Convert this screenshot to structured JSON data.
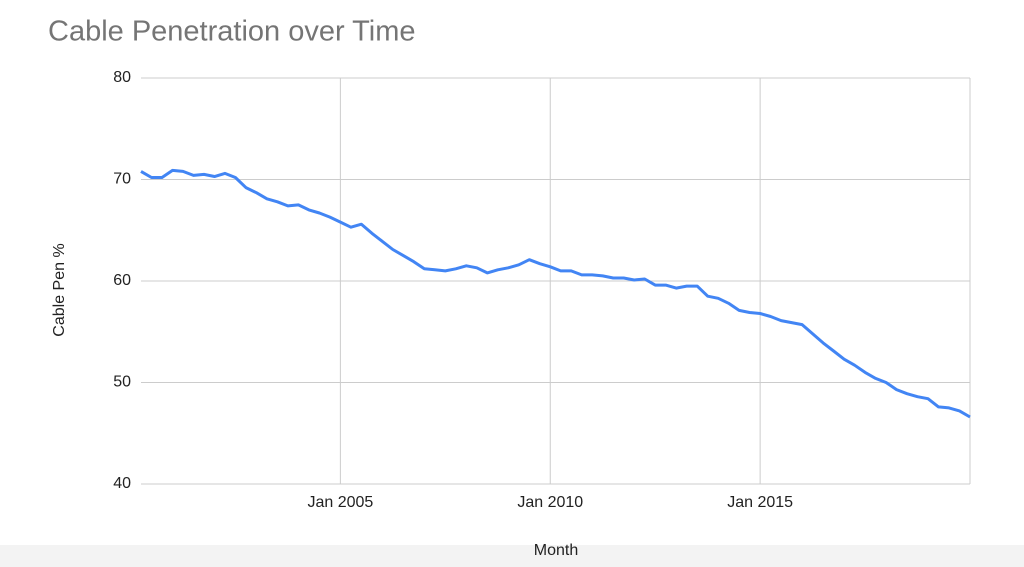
{
  "chart_data": {
    "type": "line",
    "title": "Cable Penetration over Time",
    "x_label": "Month",
    "y_label": "Cable Pen %",
    "x": [
      "2000-04",
      "2000-07",
      "2000-10",
      "2001-01",
      "2001-04",
      "2001-07",
      "2001-10",
      "2002-01",
      "2002-04",
      "2002-07",
      "2002-10",
      "2003-01",
      "2003-04",
      "2003-07",
      "2003-10",
      "2004-01",
      "2004-04",
      "2004-07",
      "2004-10",
      "2005-01",
      "2005-04",
      "2005-07",
      "2005-10",
      "2006-01",
      "2006-04",
      "2006-07",
      "2006-10",
      "2007-01",
      "2007-04",
      "2007-07",
      "2007-10",
      "2008-01",
      "2008-04",
      "2008-07",
      "2008-10",
      "2009-01",
      "2009-04",
      "2009-07",
      "2009-10",
      "2010-01",
      "2010-04",
      "2010-07",
      "2010-10",
      "2011-01",
      "2011-04",
      "2011-07",
      "2011-10",
      "2012-01",
      "2012-04",
      "2012-07",
      "2012-10",
      "2013-01",
      "2013-04",
      "2013-07",
      "2013-10",
      "2014-01",
      "2014-04",
      "2014-07",
      "2014-10",
      "2015-01",
      "2015-04",
      "2015-07",
      "2015-10",
      "2016-01",
      "2016-04",
      "2016-07",
      "2016-10",
      "2017-01",
      "2017-04",
      "2017-07",
      "2017-10",
      "2018-01",
      "2018-04",
      "2018-07",
      "2018-10",
      "2019-01",
      "2019-04",
      "2019-07",
      "2019-10",
      "2020-01"
    ],
    "series": [
      {
        "name": "Cable Pen %",
        "color": "#4285f4",
        "values": [
          70.8,
          70.2,
          70.2,
          70.9,
          70.8,
          70.4,
          70.5,
          70.3,
          70.6,
          70.2,
          69.2,
          68.7,
          68.1,
          67.8,
          67.4,
          67.5,
          67.0,
          66.7,
          66.3,
          65.8,
          65.3,
          65.6,
          64.7,
          63.9,
          63.1,
          62.5,
          61.9,
          61.2,
          61.1,
          61.0,
          61.2,
          61.5,
          61.3,
          60.8,
          61.1,
          61.3,
          61.6,
          62.1,
          61.7,
          61.4,
          61.0,
          61.0,
          60.6,
          60.6,
          60.5,
          60.3,
          60.3,
          60.1,
          60.2,
          59.6,
          59.6,
          59.3,
          59.5,
          59.5,
          58.5,
          58.3,
          57.8,
          57.1,
          56.9,
          56.8,
          56.5,
          56.1,
          55.9,
          55.7,
          54.8,
          53.9,
          53.1,
          52.3,
          51.7,
          51.0,
          50.4,
          50.0,
          49.3,
          48.9,
          48.6,
          48.4,
          47.6,
          47.5,
          47.2,
          46.6
        ]
      }
    ],
    "xlim": [
      "2000-04",
      "2020-01"
    ],
    "xticks": [
      {
        "value": "2005-01",
        "label": "Jan 2005"
      },
      {
        "value": "2010-01",
        "label": "Jan 2010"
      },
      {
        "value": "2015-01",
        "label": "Jan 2015"
      }
    ],
    "ylim": [
      40,
      80
    ],
    "yticks": [
      40,
      50,
      60,
      70,
      80
    ],
    "grid": true
  }
}
